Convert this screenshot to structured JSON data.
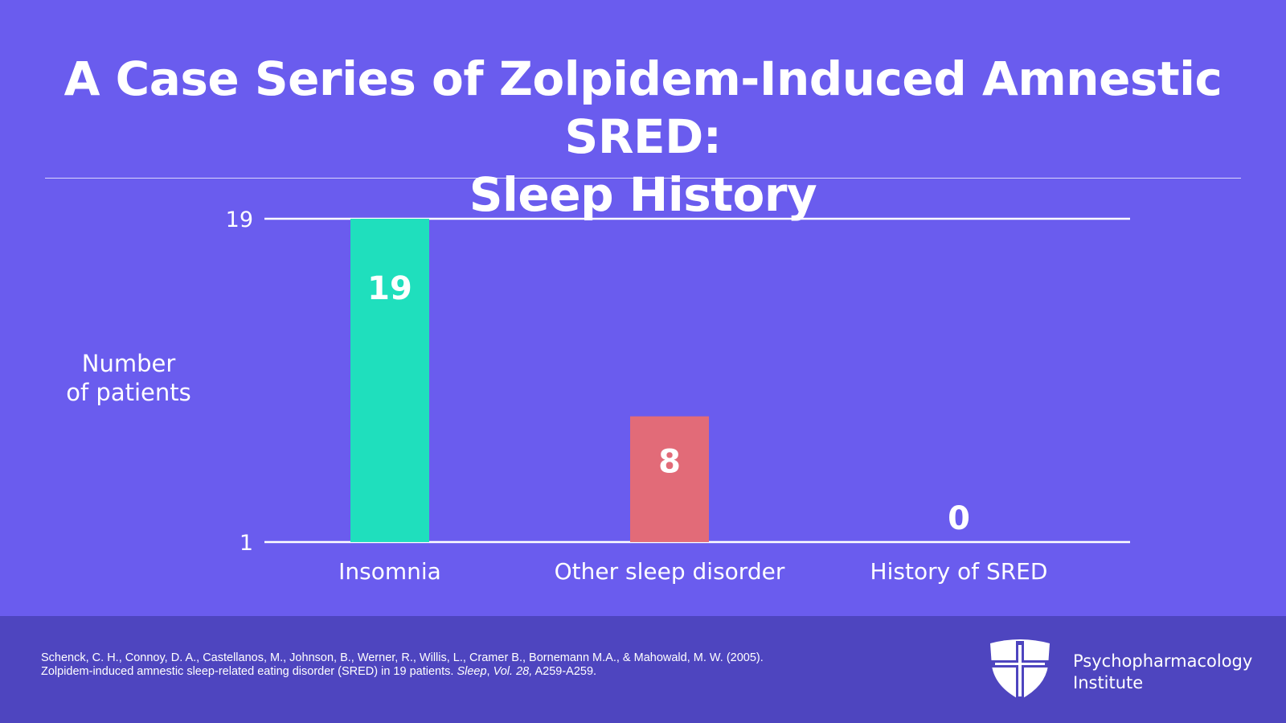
{
  "title": {
    "line1": "A Case Series of Zolpidem-Induced Amnestic SRED:",
    "line2": "Sleep History"
  },
  "chart_data": {
    "type": "bar",
    "categories": [
      "Insomnia",
      "Other sleep disorder",
      "History of SRED"
    ],
    "values": [
      19,
      8,
      0
    ],
    "data_labels": [
      "19",
      "8",
      "0"
    ],
    "ylabel": "Number of patients",
    "ylabel_lines": [
      "Number",
      "of patients"
    ],
    "yticks": [
      1,
      19
    ],
    "ylim": [
      1,
      19
    ],
    "grid": true,
    "bar_colors": [
      "#1fdfbd",
      "#e26b78",
      "#6a5cee"
    ]
  },
  "footer": {
    "citation_line1": "Schenck, C. H., Connoy, D. A., Castellanos, M., Johnson, B., Werner, R., Willis, L., Cramer B., Bornemann M.A., & Mahowald, M. W. (2005).",
    "citation_line2_a": "Zolpidem-induced amnestic sleep-related eating disorder (SRED) in 19 patients. ",
    "citation_line2_journal": "Sleep",
    "citation_line2_b": ", ",
    "citation_line2_vol": "Vol. 28,",
    "citation_line2_c": " A259-A259.",
    "brand_line1": "Psychopharmacology",
    "brand_line2": "Institute",
    "logo_icon": "shield-cross-icon"
  },
  "colors": {
    "background": "#6a5cee",
    "footer_background": "#4e45bf",
    "text": "#ffffff"
  }
}
